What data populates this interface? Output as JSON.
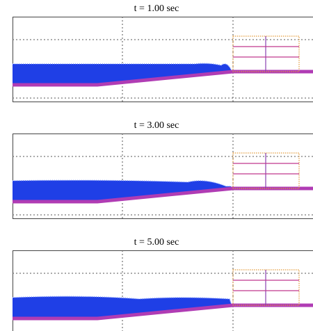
{
  "panels": [
    {
      "title": "t = 1.00 sec"
    },
    {
      "title": "t = 3.00 sec"
    },
    {
      "title": "t = 5.00 sec"
    }
  ]
}
